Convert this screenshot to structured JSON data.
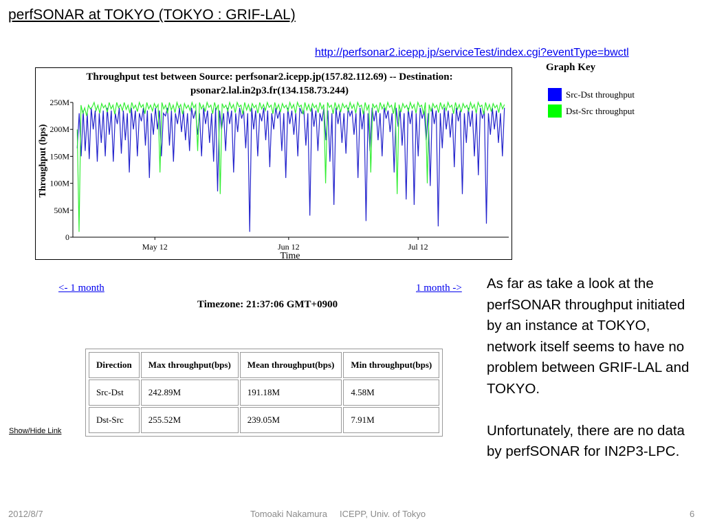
{
  "slide": {
    "title": "perfSONAR at TOKYO (TOKYO : GRIF-LAL)",
    "url": "http://perfsonar2.icepp.jp/serviceTest/index.cgi?eventType=bwctl"
  },
  "chart_data": {
    "type": "line",
    "title_line1": "Throughput test between Source: perfsonar2.icepp.jp(157.82.112.69) -- Destination:",
    "title_line2": "psonar2.lal.in2p3.fr(134.158.73.244)",
    "xlabel": "Time",
    "ylabel": "Throughput (bps)",
    "ylim": [
      0,
      250
    ],
    "y_unit": "M bps",
    "y_ticks": [
      {
        "value": 0,
        "label": "0"
      },
      {
        "value": 50,
        "label": "50M"
      },
      {
        "value": 100,
        "label": "100M"
      },
      {
        "value": 150,
        "label": "150M"
      },
      {
        "value": 200,
        "label": "200M"
      },
      {
        "value": 250,
        "label": "250M"
      }
    ],
    "xlim": [
      "2012-04-23",
      "2012-08-02"
    ],
    "x_ticks": [
      {
        "value": "2012-05-12",
        "label": "May 12"
      },
      {
        "value": "2012-06-12",
        "label": "Jun 12"
      },
      {
        "value": "2012-07-12",
        "label": "Jul 12"
      }
    ],
    "grid": false,
    "series": [
      {
        "name": "Src-Dst throughput",
        "color": "#2222cc",
        "values": [
          165,
          230,
          150,
          235,
          160,
          230,
          145,
          240,
          200,
          235,
          140,
          230,
          175,
          235,
          150,
          240,
          190,
          235,
          140,
          230,
          210,
          240,
          155,
          235,
          180,
          230,
          120,
          240,
          200,
          235,
          150,
          230,
          215,
          240,
          170,
          235,
          110,
          230,
          190,
          240,
          200,
          235,
          150,
          230,
          225,
          240,
          170,
          235,
          140,
          230,
          210,
          240,
          195,
          235,
          180,
          230,
          160,
          240,
          220,
          235,
          190,
          230,
          150,
          240,
          210,
          235,
          175,
          230,
          140,
          240,
          85,
          235,
          200,
          230,
          160,
          240,
          210,
          235,
          120,
          230,
          195,
          240,
          220,
          235,
          165,
          230,
          10,
          240,
          200,
          235,
          150,
          230,
          215,
          240,
          180,
          235,
          130,
          230,
          200,
          240,
          220,
          235,
          160,
          230,
          110,
          240,
          210,
          235,
          190,
          230,
          150,
          240,
          230,
          235,
          170,
          230,
          40,
          240,
          205,
          235,
          160,
          230,
          215,
          240,
          180,
          235,
          140,
          230,
          60,
          240,
          210,
          235,
          175,
          230,
          155,
          240,
          225,
          235,
          190,
          230,
          110,
          240,
          200,
          235,
          30,
          230,
          160,
          240,
          215,
          235,
          180,
          230,
          150,
          240,
          220,
          235,
          195,
          230,
          120,
          240,
          205,
          235,
          170,
          230,
          70,
          240,
          210,
          235,
          60,
          230,
          150,
          240,
          220,
          235,
          180,
          230,
          95,
          240,
          210,
          235,
          20,
          230,
          165,
          240,
          200,
          235,
          185,
          230,
          130,
          240,
          215,
          235,
          80,
          230,
          175,
          240,
          205,
          235,
          150,
          230,
          115,
          240,
          220,
          235,
          25,
          230,
          190,
          240,
          200,
          235,
          175,
          230,
          150,
          240
        ],
        "min_M": 4.58,
        "mean_M": 191.18,
        "max_M": 242.89
      },
      {
        "name": "Dst-Src throughput",
        "color": "#33ee33",
        "values": [
          200,
          10,
          245,
          230,
          240,
          225,
          245,
          238,
          242,
          250,
          235,
          245,
          230,
          248,
          240,
          245,
          232,
          250,
          238,
          245,
          228,
          250,
          240,
          246,
          235,
          250,
          237,
          245,
          230,
          250,
          239,
          245,
          233,
          250,
          241,
          246,
          229,
          250,
          238,
          245,
          234,
          248,
          240,
          246,
          120,
          250,
          238,
          245,
          230,
          250,
          236,
          245,
          231,
          250,
          240,
          246,
          228,
          248,
          239,
          245,
          235,
          250,
          240,
          246,
          160,
          250,
          238,
          245,
          233,
          250,
          241,
          245,
          229,
          250,
          237,
          246,
          80,
          248,
          240,
          245,
          234,
          250,
          239,
          246,
          231,
          250,
          242,
          245,
          228,
          250,
          236,
          246,
          233,
          248,
          240,
          245,
          230,
          250,
          238,
          246,
          235,
          250,
          241,
          245,
          229,
          250,
          237,
          246,
          232,
          248,
          240,
          245,
          234,
          250,
          239,
          246,
          230,
          250,
          242,
          245,
          228,
          250,
          236,
          246,
          233,
          248,
          240,
          245,
          231,
          250,
          238,
          246,
          100,
          250,
          241,
          245,
          229,
          250,
          237,
          246,
          232,
          248,
          240,
          245,
          234,
          250,
          239,
          246,
          230,
          250,
          242,
          245,
          228,
          250,
          236,
          246,
          120,
          248,
          240,
          245,
          231,
          250,
          238,
          246,
          235,
          250,
          241,
          245,
          229,
          250,
          80,
          246,
          232,
          248,
          240,
          245,
          234,
          250,
          239,
          246,
          230,
          250,
          242,
          245,
          228,
          250,
          100,
          246,
          233,
          248,
          240,
          245,
          231,
          250,
          238,
          246,
          235,
          250,
          241,
          245,
          229,
          250,
          237,
          246,
          232,
          248,
          240,
          245,
          234,
          250,
          239,
          246,
          230,
          250,
          242,
          245,
          228,
          250,
          236,
          246,
          233,
          248,
          240,
          245,
          231,
          250,
          238,
          246
        ],
        "min_M": 7.91,
        "mean_M": 239.05,
        "max_M": 255.52
      }
    ]
  },
  "graph_key": {
    "title": "Graph Key",
    "items": [
      {
        "label": "Src-Dst throughput",
        "color": "#0000ff"
      },
      {
        "label": "Dst-Src throughput",
        "color": "#00ff00"
      }
    ]
  },
  "nav": {
    "prev_label": "<- 1 month",
    "next_label": "1 month ->"
  },
  "timezone": "Timezone: 21:37:06 GMT+0900",
  "stats_table": {
    "headers": [
      "Direction",
      "Max throughput(bps)",
      "Mean throughput(bps)",
      "Min throughput(bps)"
    ],
    "rows": [
      [
        "Src-Dst",
        "242.89M",
        "191.18M",
        "4.58M"
      ],
      [
        "Dst-Src",
        "255.52M",
        "239.05M",
        "7.91M"
      ]
    ]
  },
  "show_hide_label": "Show/Hide Link",
  "side_text": {
    "para1": "As far as take a look at the perfSONAR throughput initiated by an instance at TOKYO, network itself seems to have no problem between GRIF-LAL and TOKYO.",
    "para2": "Unfortunately, there are no data by perfSONAR for IN2P3-LPC."
  },
  "footer": {
    "date": "2012/8/7",
    "author": "Tomoaki Nakamura     ICEPP, Univ. of Tokyo",
    "page": "6"
  }
}
